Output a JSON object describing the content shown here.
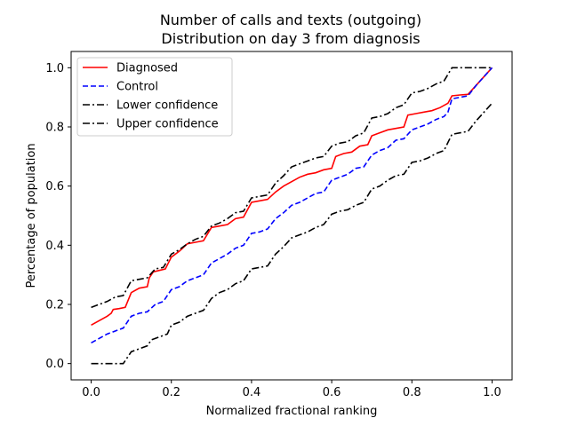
{
  "chart_data": {
    "type": "line",
    "title": "Number of calls and texts (outgoing)",
    "subtitle": "Distribution on day 3 from diagnosis",
    "xlabel": "Normalized fractional ranking",
    "ylabel": "Percentage of population",
    "xlim": [
      -0.05,
      1.05
    ],
    "ylim": [
      -0.055,
      1.055
    ],
    "xticks": [
      0.0,
      0.2,
      0.4,
      0.6,
      0.8,
      1.0
    ],
    "xtick_labels": [
      "0.0",
      "0.2",
      "0.4",
      "0.6",
      "0.8",
      "1.0"
    ],
    "yticks": [
      0.0,
      0.2,
      0.4,
      0.6,
      0.8,
      1.0
    ],
    "ytick_labels": [
      "0.0",
      "0.2",
      "0.4",
      "0.6",
      "0.8",
      "1.0"
    ],
    "grid": false,
    "legend_position": "top-left",
    "series": [
      {
        "name": "Diagnosed",
        "color": "#ff0000",
        "style": "solid",
        "points": [
          [
            0.0,
            0.13
          ],
          [
            0.02,
            0.145
          ],
          [
            0.04,
            0.16
          ],
          [
            0.05,
            0.17
          ],
          [
            0.055,
            0.183
          ],
          [
            0.07,
            0.186
          ],
          [
            0.085,
            0.19
          ],
          [
            0.1,
            0.24
          ],
          [
            0.12,
            0.255
          ],
          [
            0.14,
            0.26
          ],
          [
            0.145,
            0.29
          ],
          [
            0.155,
            0.31
          ],
          [
            0.17,
            0.315
          ],
          [
            0.185,
            0.32
          ],
          [
            0.2,
            0.36
          ],
          [
            0.22,
            0.38
          ],
          [
            0.24,
            0.405
          ],
          [
            0.26,
            0.41
          ],
          [
            0.28,
            0.415
          ],
          [
            0.3,
            0.46
          ],
          [
            0.32,
            0.465
          ],
          [
            0.34,
            0.47
          ],
          [
            0.36,
            0.49
          ],
          [
            0.38,
            0.495
          ],
          [
            0.4,
            0.545
          ],
          [
            0.42,
            0.55
          ],
          [
            0.44,
            0.555
          ],
          [
            0.46,
            0.58
          ],
          [
            0.48,
            0.6
          ],
          [
            0.5,
            0.615
          ],
          [
            0.52,
            0.63
          ],
          [
            0.54,
            0.64
          ],
          [
            0.56,
            0.645
          ],
          [
            0.58,
            0.655
          ],
          [
            0.6,
            0.66
          ],
          [
            0.61,
            0.7
          ],
          [
            0.63,
            0.71
          ],
          [
            0.65,
            0.715
          ],
          [
            0.67,
            0.735
          ],
          [
            0.69,
            0.74
          ],
          [
            0.7,
            0.77
          ],
          [
            0.72,
            0.78
          ],
          [
            0.74,
            0.79
          ],
          [
            0.76,
            0.795
          ],
          [
            0.78,
            0.8
          ],
          [
            0.79,
            0.84
          ],
          [
            0.81,
            0.845
          ],
          [
            0.83,
            0.85
          ],
          [
            0.85,
            0.855
          ],
          [
            0.87,
            0.865
          ],
          [
            0.89,
            0.88
          ],
          [
            0.9,
            0.905
          ],
          [
            0.92,
            0.908
          ],
          [
            0.94,
            0.91
          ],
          [
            0.96,
            0.94
          ],
          [
            0.98,
            0.97
          ],
          [
            1.0,
            1.0
          ]
        ]
      },
      {
        "name": "Control",
        "color": "#0000ff",
        "style": "dashed",
        "points": [
          [
            0.0,
            0.07
          ],
          [
            0.02,
            0.085
          ],
          [
            0.04,
            0.1
          ],
          [
            0.05,
            0.105
          ],
          [
            0.06,
            0.11
          ],
          [
            0.08,
            0.12
          ],
          [
            0.1,
            0.16
          ],
          [
            0.12,
            0.17
          ],
          [
            0.14,
            0.175
          ],
          [
            0.16,
            0.2
          ],
          [
            0.18,
            0.21
          ],
          [
            0.2,
            0.25
          ],
          [
            0.22,
            0.26
          ],
          [
            0.24,
            0.28
          ],
          [
            0.26,
            0.29
          ],
          [
            0.28,
            0.3
          ],
          [
            0.3,
            0.34
          ],
          [
            0.32,
            0.355
          ],
          [
            0.34,
            0.37
          ],
          [
            0.36,
            0.39
          ],
          [
            0.38,
            0.4
          ],
          [
            0.4,
            0.44
          ],
          [
            0.42,
            0.445
          ],
          [
            0.44,
            0.455
          ],
          [
            0.46,
            0.49
          ],
          [
            0.48,
            0.51
          ],
          [
            0.5,
            0.535
          ],
          [
            0.52,
            0.545
          ],
          [
            0.54,
            0.56
          ],
          [
            0.56,
            0.575
          ],
          [
            0.58,
            0.58
          ],
          [
            0.6,
            0.62
          ],
          [
            0.62,
            0.63
          ],
          [
            0.64,
            0.64
          ],
          [
            0.66,
            0.66
          ],
          [
            0.68,
            0.665
          ],
          [
            0.7,
            0.705
          ],
          [
            0.72,
            0.72
          ],
          [
            0.74,
            0.73
          ],
          [
            0.76,
            0.755
          ],
          [
            0.78,
            0.76
          ],
          [
            0.8,
            0.79
          ],
          [
            0.82,
            0.8
          ],
          [
            0.84,
            0.81
          ],
          [
            0.86,
            0.825
          ],
          [
            0.88,
            0.835
          ],
          [
            0.89,
            0.85
          ],
          [
            0.9,
            0.895
          ],
          [
            0.92,
            0.9
          ],
          [
            0.94,
            0.905
          ],
          [
            0.96,
            0.94
          ],
          [
            0.98,
            0.97
          ],
          [
            1.0,
            1.0
          ]
        ]
      },
      {
        "name": "Lower confidence",
        "color": "#000000",
        "style": "dashdot",
        "points": [
          [
            0.0,
            0.0
          ],
          [
            0.02,
            0.0
          ],
          [
            0.04,
            0.0
          ],
          [
            0.06,
            0.0
          ],
          [
            0.08,
            0.0
          ],
          [
            0.09,
            0.02
          ],
          [
            0.1,
            0.04
          ],
          [
            0.12,
            0.05
          ],
          [
            0.14,
            0.06
          ],
          [
            0.15,
            0.08
          ],
          [
            0.17,
            0.09
          ],
          [
            0.19,
            0.1
          ],
          [
            0.2,
            0.13
          ],
          [
            0.22,
            0.14
          ],
          [
            0.24,
            0.16
          ],
          [
            0.26,
            0.17
          ],
          [
            0.28,
            0.18
          ],
          [
            0.3,
            0.22
          ],
          [
            0.32,
            0.24
          ],
          [
            0.34,
            0.25
          ],
          [
            0.36,
            0.27
          ],
          [
            0.38,
            0.28
          ],
          [
            0.4,
            0.32
          ],
          [
            0.42,
            0.325
          ],
          [
            0.44,
            0.33
          ],
          [
            0.46,
            0.37
          ],
          [
            0.48,
            0.395
          ],
          [
            0.5,
            0.425
          ],
          [
            0.52,
            0.435
          ],
          [
            0.54,
            0.445
          ],
          [
            0.56,
            0.46
          ],
          [
            0.58,
            0.47
          ],
          [
            0.6,
            0.505
          ],
          [
            0.62,
            0.515
          ],
          [
            0.64,
            0.52
          ],
          [
            0.66,
            0.535
          ],
          [
            0.68,
            0.545
          ],
          [
            0.7,
            0.59
          ],
          [
            0.72,
            0.6
          ],
          [
            0.74,
            0.62
          ],
          [
            0.76,
            0.635
          ],
          [
            0.78,
            0.64
          ],
          [
            0.8,
            0.68
          ],
          [
            0.82,
            0.685
          ],
          [
            0.84,
            0.695
          ],
          [
            0.86,
            0.71
          ],
          [
            0.88,
            0.72
          ],
          [
            0.9,
            0.775
          ],
          [
            0.92,
            0.78
          ],
          [
            0.94,
            0.785
          ],
          [
            0.96,
            0.82
          ],
          [
            0.98,
            0.85
          ],
          [
            1.0,
            0.88
          ]
        ]
      },
      {
        "name": "Upper confidence",
        "color": "#000000",
        "style": "dashdot",
        "points": [
          [
            0.0,
            0.19
          ],
          [
            0.02,
            0.2
          ],
          [
            0.04,
            0.21
          ],
          [
            0.06,
            0.225
          ],
          [
            0.08,
            0.23
          ],
          [
            0.1,
            0.28
          ],
          [
            0.12,
            0.285
          ],
          [
            0.14,
            0.29
          ],
          [
            0.16,
            0.32
          ],
          [
            0.18,
            0.325
          ],
          [
            0.2,
            0.37
          ],
          [
            0.22,
            0.385
          ],
          [
            0.24,
            0.405
          ],
          [
            0.26,
            0.42
          ],
          [
            0.28,
            0.43
          ],
          [
            0.3,
            0.465
          ],
          [
            0.32,
            0.475
          ],
          [
            0.34,
            0.49
          ],
          [
            0.36,
            0.51
          ],
          [
            0.38,
            0.515
          ],
          [
            0.4,
            0.56
          ],
          [
            0.42,
            0.565
          ],
          [
            0.44,
            0.57
          ],
          [
            0.46,
            0.61
          ],
          [
            0.48,
            0.635
          ],
          [
            0.5,
            0.665
          ],
          [
            0.52,
            0.675
          ],
          [
            0.54,
            0.685
          ],
          [
            0.56,
            0.695
          ],
          [
            0.58,
            0.7
          ],
          [
            0.6,
            0.735
          ],
          [
            0.62,
            0.745
          ],
          [
            0.64,
            0.75
          ],
          [
            0.66,
            0.77
          ],
          [
            0.68,
            0.78
          ],
          [
            0.7,
            0.83
          ],
          [
            0.72,
            0.835
          ],
          [
            0.74,
            0.845
          ],
          [
            0.76,
            0.865
          ],
          [
            0.78,
            0.875
          ],
          [
            0.8,
            0.915
          ],
          [
            0.82,
            0.92
          ],
          [
            0.84,
            0.93
          ],
          [
            0.86,
            0.945
          ],
          [
            0.88,
            0.955
          ],
          [
            0.9,
            1.0
          ],
          [
            0.92,
            1.0
          ],
          [
            0.94,
            1.0
          ],
          [
            0.96,
            1.0
          ],
          [
            0.98,
            1.0
          ],
          [
            1.0,
            1.0
          ]
        ]
      }
    ]
  }
}
